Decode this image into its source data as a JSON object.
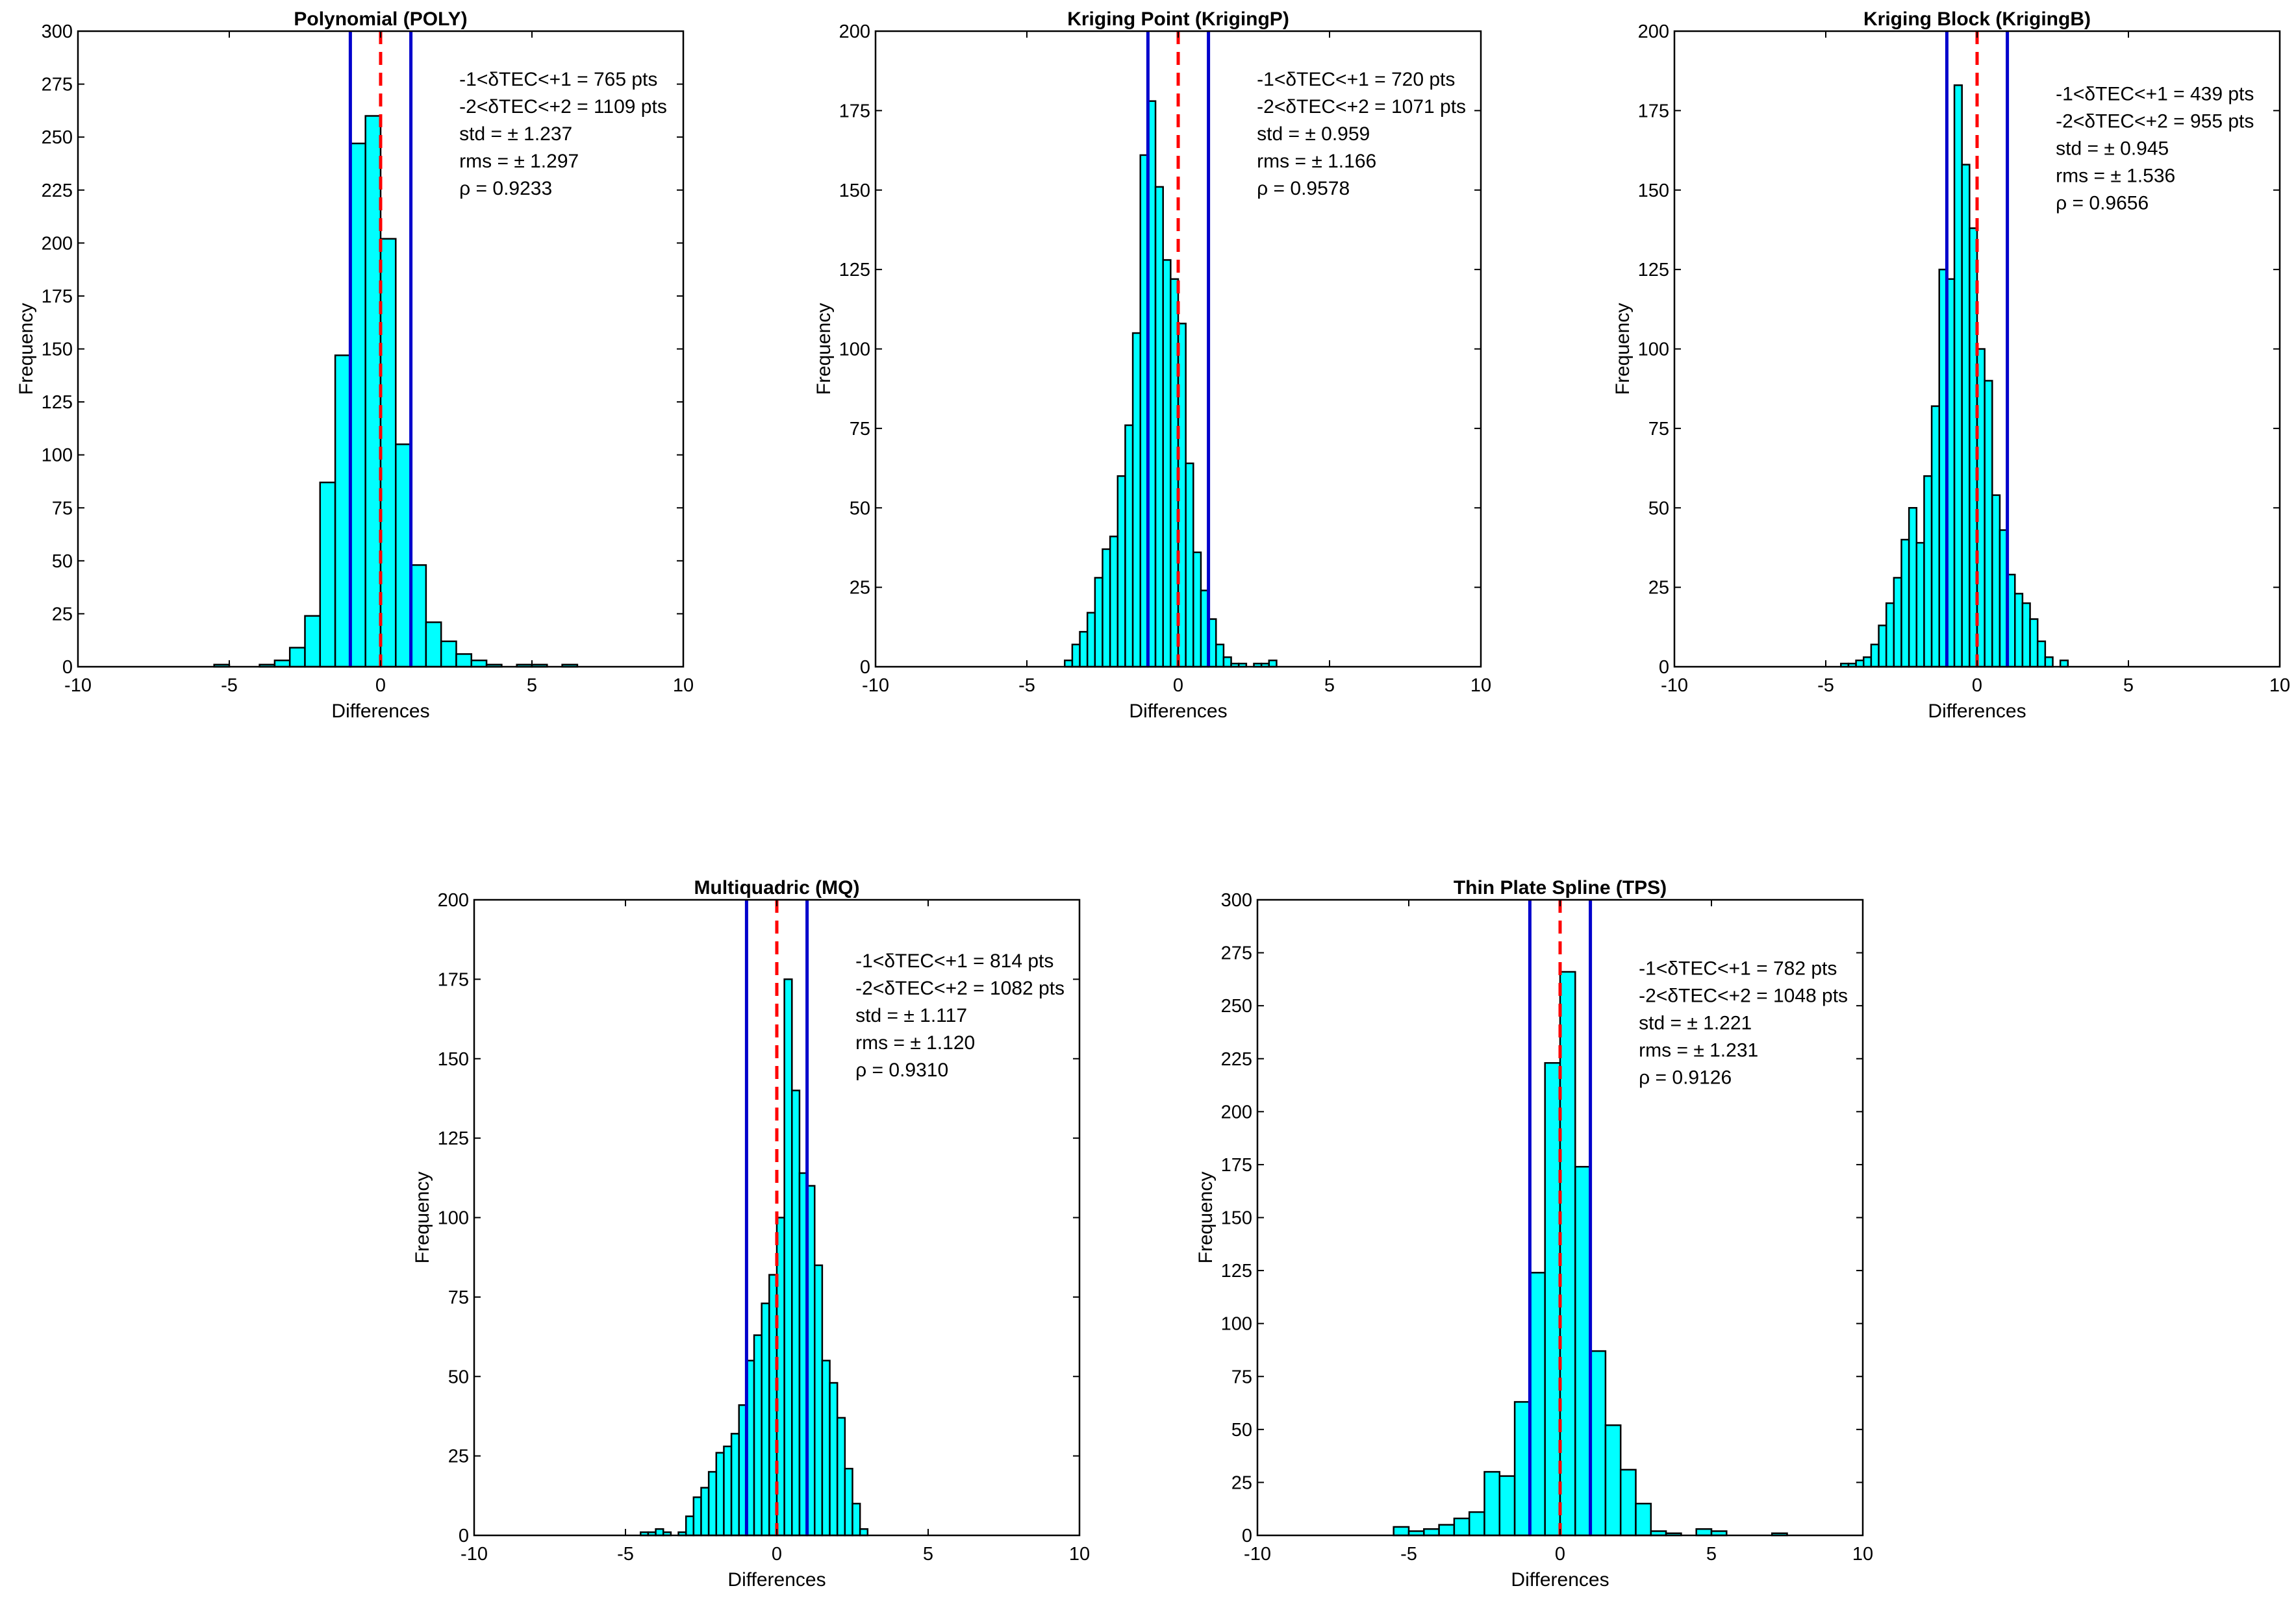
{
  "figure": {
    "colors": {
      "bar": "#00FFFF",
      "bar_edge": "#000000",
      "bound_line": "#0000CC",
      "zero_line": "#FF0000",
      "axes": "#000000"
    },
    "xlabel": "Differences",
    "ylabel": "Frequency"
  },
  "chart_data": [
    {
      "type": "bar",
      "title": "Polynomial (POLY)",
      "xlabel": "Differences",
      "ylabel": "Frequency",
      "xlim": [
        -10,
        10
      ],
      "ylim": [
        0,
        300
      ],
      "xticks": [
        -10,
        -5,
        0,
        5,
        10
      ],
      "yticks": [
        0,
        25,
        50,
        75,
        100,
        125,
        150,
        175,
        200,
        225,
        250,
        275,
        300
      ],
      "bin_width": 0.5,
      "bins_left": [
        -5.5,
        -5.0,
        -4.5,
        -4.0,
        -3.5,
        -3.0,
        -2.5,
        -2.0,
        -1.5,
        -1.0,
        -0.5,
        0.0,
        0.5,
        1.0,
        1.5,
        2.0,
        2.5,
        3.0,
        3.5,
        4.0,
        4.5,
        5.0,
        5.5,
        6.0,
        6.5
      ],
      "values": [
        1,
        0,
        0,
        1,
        3,
        9,
        24,
        87,
        147,
        247,
        260,
        202,
        105,
        48,
        21,
        12,
        6,
        3,
        1,
        0,
        1,
        1,
        0,
        1,
        0
      ],
      "bounds": [
        -1,
        1
      ],
      "center": 0,
      "annotations": [
        "-1<δTEC<+1 = 765 pts",
        "-2<δTEC<+2 = 1109 pts",
        "std  = ± 1.237",
        "rms = ± 1.297",
        "ρ = 0.9233"
      ]
    },
    {
      "type": "bar",
      "title": "Kriging Point (KrigingP)",
      "xlabel": "Differences",
      "ylabel": "Frequency",
      "xlim": [
        -10,
        10
      ],
      "ylim": [
        0,
        200
      ],
      "xticks": [
        -10,
        -5,
        0,
        5,
        10
      ],
      "yticks": [
        0,
        25,
        50,
        75,
        100,
        125,
        150,
        175,
        200
      ],
      "bin_width": 0.25,
      "bins_left": [
        -3.75,
        -3.5,
        -3.25,
        -3.0,
        -2.75,
        -2.5,
        -2.25,
        -2.0,
        -1.75,
        -1.5,
        -1.25,
        -1.0,
        -0.75,
        -0.5,
        -0.25,
        0.0,
        0.25,
        0.5,
        0.75,
        1.0,
        1.25,
        1.5,
        1.75,
        2.0,
        2.25,
        2.5,
        2.75,
        3.0,
        3.25
      ],
      "values": [
        2,
        7,
        11,
        17,
        28,
        37,
        41,
        60,
        76,
        105,
        161,
        178,
        151,
        128,
        122,
        108,
        64,
        36,
        24,
        15,
        7,
        3,
        1,
        1,
        0,
        1,
        1,
        2,
        0
      ],
      "bounds": [
        -1,
        1
      ],
      "center": 0,
      "annotations": [
        "-1<δTEC<+1 = 720 pts",
        "-2<δTEC<+2 = 1071 pts",
        "std  = ± 0.959",
        "rms = ± 1.166",
        "ρ = 0.9578"
      ]
    },
    {
      "type": "bar",
      "title": "Kriging Block (KrigingB)",
      "xlabel": "Differences",
      "ylabel": "Frequency",
      "xlim": [
        -10,
        10
      ],
      "ylim": [
        0,
        200
      ],
      "xticks": [
        -10,
        -5,
        0,
        5,
        10
      ],
      "yticks": [
        0,
        25,
        50,
        75,
        100,
        125,
        150,
        175,
        200
      ],
      "bin_width": 0.25,
      "bins_left": [
        -4.5,
        -4.25,
        -4.0,
        -3.75,
        -3.5,
        -3.25,
        -3.0,
        -2.75,
        -2.5,
        -2.25,
        -2.0,
        -1.75,
        -1.5,
        -1.25,
        -1.0,
        -0.75,
        -0.5,
        -0.25,
        0.0,
        0.25,
        0.5,
        0.75,
        1.0,
        1.25,
        1.5,
        1.75,
        2.0,
        2.25,
        2.5,
        2.75
      ],
      "values": [
        1,
        1,
        2,
        3,
        7,
        13,
        20,
        28,
        40,
        50,
        39,
        60,
        82,
        125,
        122,
        183,
        158,
        138,
        100,
        90,
        54,
        43,
        29,
        23,
        20,
        15,
        8,
        3,
        0,
        2
      ],
      "bounds": [
        -1,
        1
      ],
      "center": 0,
      "annotations": [
        "-1<δTEC<+1 = 439 pts",
        "-2<δTEC<+2 = 955 pts",
        "std  = ± 0.945",
        "rms = ± 1.536",
        "ρ = 0.9656"
      ]
    },
    {
      "type": "bar",
      "title": "Multiquadric (MQ)",
      "xlabel": "Differences",
      "ylabel": "Frequency",
      "xlim": [
        -10,
        10
      ],
      "ylim": [
        0,
        200
      ],
      "xticks": [
        -10,
        -5,
        0,
        5,
        10
      ],
      "yticks": [
        0,
        25,
        50,
        75,
        100,
        125,
        150,
        175,
        200
      ],
      "bin_width": 0.25,
      "bins_left": [
        -4.5,
        -4.25,
        -4.0,
        -3.75,
        -3.5,
        -3.25,
        -3.0,
        -2.75,
        -2.5,
        -2.25,
        -2.0,
        -1.75,
        -1.5,
        -1.25,
        -1.0,
        -0.75,
        -0.5,
        -0.25,
        0.0,
        0.25,
        0.5,
        0.75,
        1.0,
        1.25,
        1.5,
        1.75,
        2.0,
        2.25,
        2.5,
        2.75
      ],
      "values": [
        1,
        1,
        2,
        1,
        0,
        1,
        6,
        12,
        15,
        20,
        26,
        28,
        32,
        41,
        55,
        63,
        73,
        82,
        100,
        175,
        140,
        114,
        110,
        85,
        55,
        48,
        37,
        21,
        10,
        2
      ],
      "bounds": [
        -1,
        1
      ],
      "center": 0,
      "annotations": [
        "-1<δTEC<+1 = 814 pts",
        "-2<δTEC<+2 = 1082 pts",
        "std  = ± 1.117",
        "rms = ± 1.120",
        "ρ = 0.9310"
      ]
    },
    {
      "type": "bar",
      "title": "Thin Plate Spline (TPS)",
      "xlabel": "Differences",
      "ylabel": "Frequency",
      "xlim": [
        -10,
        10
      ],
      "ylim": [
        0,
        300
      ],
      "xticks": [
        -10,
        -5,
        0,
        5,
        10
      ],
      "yticks": [
        0,
        25,
        50,
        75,
        100,
        125,
        150,
        175,
        200,
        225,
        250,
        275,
        300
      ],
      "bin_width": 0.5,
      "bins_left": [
        -5.5,
        -5.0,
        -4.5,
        -4.0,
        -3.5,
        -3.0,
        -2.5,
        -2.0,
        -1.5,
        -1.0,
        -0.5,
        0.0,
        0.5,
        1.0,
        1.5,
        2.0,
        2.5,
        3.0,
        3.5,
        4.0,
        4.5,
        5.0,
        5.5,
        6.0,
        6.5,
        7.0
      ],
      "values": [
        4,
        2,
        3,
        5,
        8,
        11,
        30,
        28,
        63,
        124,
        223,
        266,
        174,
        87,
        52,
        31,
        15,
        2,
        1,
        0,
        3,
        2,
        0,
        0,
        0,
        1
      ],
      "bounds": [
        -1,
        1
      ],
      "center": 0,
      "annotations": [
        "-1<δTEC<+1 = 782 pts",
        "-2<δTEC<+2 = 1048 pts",
        "std  = ± 1.221",
        "rms = ± 1.231",
        "ρ = 0.9126"
      ]
    }
  ]
}
